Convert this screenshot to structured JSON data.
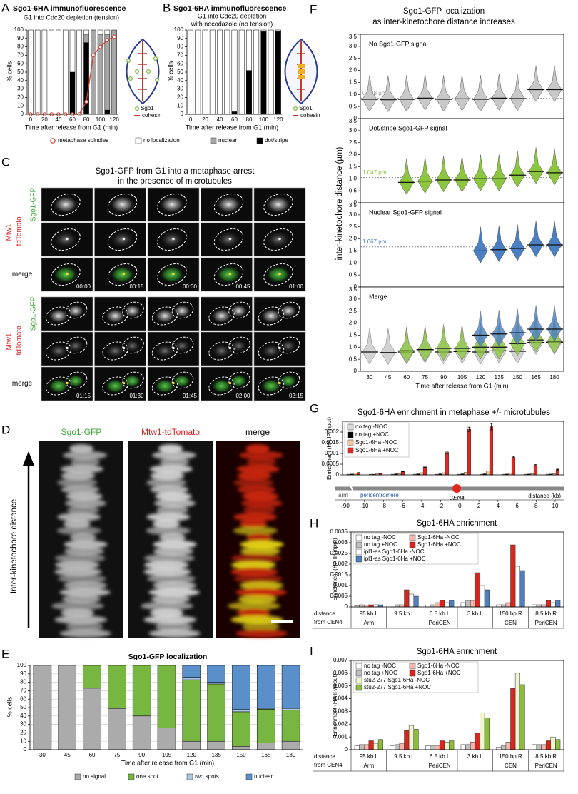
{
  "panels": [
    "A",
    "B",
    "C",
    "D",
    "E",
    "F",
    "G",
    "H",
    "I"
  ],
  "schematic": {
    "sgo1": "Sgo1",
    "cohesin": "cohesin"
  },
  "panel_c": {
    "title": [
      "Sgo1-GFP from G1 into a metaphase arrest",
      "in the presence of microtubules"
    ],
    "gfp": "Sgo1-GFP",
    "mtw1": "Mtw1",
    "tdtomato": "-tdTomato",
    "merge": "merge",
    "timestamps": [
      "00:00",
      "00:15",
      "00:30",
      "00:45",
      "01:00",
      "01:15",
      "01:30",
      "01:45",
      "02:00",
      "02:15"
    ]
  },
  "panel_d": {
    "labels": [
      "Sgo1-GFP",
      "Mtw1-tdTomato",
      "merge"
    ],
    "axis_label": "Inter-kinetochore distance"
  },
  "chart_data": [
    {
      "type": "bar",
      "stacked": true,
      "title": "Sgo1-6HA immunofluorescence",
      "subtitle": [
        "G1 into Cdc20 depletion (tension)"
      ],
      "x_label": "Time after release from G1 (min)",
      "y_label": "% cells",
      "categories": [
        0,
        null,
        20,
        null,
        40,
        null,
        60,
        null,
        80,
        null,
        100,
        null,
        120
      ],
      "ylim": [
        0,
        100
      ],
      "yticks": [
        0,
        10,
        20,
        30,
        40,
        50,
        60,
        70,
        80,
        90,
        100
      ],
      "series": [
        {
          "name": "dot/stripe",
          "color": "#000000",
          "values": [
            0,
            0,
            0,
            0,
            0,
            0,
            50,
            0,
            85,
            0,
            0,
            5,
            0
          ]
        },
        {
          "name": "nuclear",
          "color": "#a6a6a6",
          "values": [
            0,
            0,
            0,
            0,
            0,
            0,
            0,
            0,
            10,
            100,
            95,
            90,
            100
          ]
        },
        {
          "name": "no localization",
          "color": "#ffffff",
          "values": [
            100,
            100,
            100,
            100,
            100,
            100,
            50,
            100,
            5,
            0,
            5,
            5,
            0
          ]
        },
        {
          "name": "metaphase spindles",
          "type": "line",
          "color": "#d23a2a",
          "values": [
            0,
            0,
            0,
            0,
            0,
            0,
            0,
            0,
            15,
            70,
            80,
            88,
            92
          ]
        }
      ]
    },
    {
      "type": "bar",
      "stacked": true,
      "title": "Sgo1-6HA immunofluorescence",
      "subtitle": [
        "G1 into Cdc20 depletion",
        "with nocodazole (no tension)"
      ],
      "x_label": "Time after release from G1 (min)",
      "y_label": "% cells",
      "categories": [
        0,
        null,
        20,
        null,
        40,
        null,
        60,
        null,
        80,
        null,
        100,
        null,
        120
      ],
      "ylim": [
        0,
        100
      ],
      "yticks": [
        0,
        10,
        20,
        30,
        40,
        50,
        60,
        70,
        80,
        90,
        100
      ],
      "series": [
        {
          "color": "#000000",
          "values": [
            0,
            0,
            0,
            0,
            0,
            0,
            3,
            0,
            52,
            0,
            98,
            0,
            98
          ]
        },
        {
          "color": "#ffffff",
          "values": [
            100,
            100,
            100,
            100,
            100,
            100,
            97,
            100,
            48,
            100,
            2,
            100,
            2
          ]
        }
      ]
    },
    {
      "type": "bar",
      "stacked": true,
      "grid": true,
      "title": "Sgo1-GFP localization",
      "x_label": "Time after release from G1 (min)",
      "y_label": "% cells",
      "categories": [
        30,
        45,
        60,
        75,
        90,
        105,
        120,
        135,
        150,
        165,
        180
      ],
      "ylim": [
        0,
        100
      ],
      "yticks": [
        0,
        10,
        20,
        30,
        40,
        50,
        60,
        70,
        80,
        90,
        100
      ],
      "series": [
        {
          "name": "no signal",
          "color": "#ababab",
          "values": [
            100,
            100,
            73,
            49,
            40,
            26,
            10,
            10,
            4,
            8,
            10
          ]
        },
        {
          "name": "one spot",
          "color": "#78b642",
          "values": [
            0,
            0,
            27,
            51,
            60,
            74,
            73,
            68,
            41,
            40,
            37
          ]
        },
        {
          "name": "two spots",
          "color": "#a9cbe8",
          "values": [
            0,
            0,
            0,
            0,
            0,
            0,
            3,
            2,
            3,
            1,
            2
          ]
        },
        {
          "name": "nuclear",
          "color": "#5b8fca",
          "values": [
            0,
            0,
            0,
            0,
            0,
            0,
            14,
            20,
            52,
            51,
            51
          ]
        }
      ]
    },
    {
      "type": "violin",
      "title": "Sgo1-GFP localization",
      "subtitle": [
        "as inter-kinetochore distance increases"
      ],
      "x_label": "Time after release from G1 (min)",
      "y_label": "inter-kinetochore distance (µm)",
      "categories": [
        30,
        45,
        60,
        75,
        90,
        105,
        120,
        135,
        150,
        165,
        180
      ],
      "ylim": [
        0,
        3.5
      ],
      "yticks": [
        0,
        0.5,
        {
          "value": 1,
          "label": "1.0"
        },
        1.5,
        {
          "value": 2,
          "label": "2.0"
        },
        2.5,
        {
          "value": 3,
          "label": "3.0"
        },
        3.5
      ],
      "panels": [
        {
          "label": "No Sgo1-GFP signal",
          "color": "#c8c8c8",
          "reference": 0.838,
          "reference_label": "0.838 µm",
          "values": [
            0.8,
            0.78,
            0.8,
            0.85,
            0.8,
            0.82,
            0.8,
            0.85,
            0.83,
            1.2,
            1.2
          ]
        },
        {
          "label": "Dot/stripe Sgo1-GFP signal",
          "color": "#8cc63f",
          "reference": 1.047,
          "reference_label": "1.047 µm",
          "values": [
            null,
            null,
            0.85,
            0.9,
            0.95,
            0.95,
            1.0,
            1.0,
            1.15,
            1.3,
            1.25
          ]
        },
        {
          "label": "Nuclear Sgo1-GFP signal",
          "color": "#4a7fc1",
          "reference": 1.667,
          "reference_label": "1.667 µm",
          "values": [
            null,
            null,
            null,
            null,
            null,
            null,
            1.5,
            1.55,
            1.6,
            1.75,
            1.75
          ]
        },
        {
          "label": "Merge"
        }
      ]
    },
    {
      "type": "bar",
      "title": "Sgo1-6HA enrichment in metaphase +/- microtubules",
      "y_label": "Enrichment (HA IP/input)",
      "categories": [
        null,
        null,
        null,
        null,
        null,
        null,
        null,
        null,
        null,
        null
      ],
      "ylim": [
        0,
        0.0025
      ],
      "yticks": [
        0,
        0.0005,
        0.001,
        0.0015,
        0.002
      ],
      "series": [
        {
          "name": "no tag -NOC",
          "color": "#d9d9d9",
          "values": [
            3e-05,
            3e-05,
            3e-05,
            3e-05,
            3e-05,
            3e-05,
            3e-05,
            3e-05,
            3e-05,
            3e-05
          ]
        },
        {
          "name": "no tag +NOC",
          "color": "#000000",
          "values": [
            4e-05,
            3e-05,
            5e-05,
            5e-05,
            5e-05,
            5e-05,
            5e-05,
            4e-05,
            4e-05,
            4e-05
          ]
        },
        {
          "name": "Sgo1-6Ha -NOC",
          "color": "#f4c79e",
          "values": [
            8e-05,
            5e-05,
            6e-05,
            0.0001,
            0.0001,
            0.00012,
            0.00018,
            8e-05,
            6e-05,
            5e-05
          ]
        },
        {
          "name": "Sgo1-6Ha +NOC",
          "color": "#e0281e",
          "values": [
            0.0001,
            7e-05,
            0.00015,
            0.00038,
            0.00105,
            0.00213,
            0.00225,
            0.00082,
            0.00045,
            0.00025
          ],
          "errors": [
            1e-05,
            1e-05,
            1e-05,
            3e-05,
            5e-05,
            0.0001,
            0.00015,
            4e-05,
            3e-05,
            2e-05
          ]
        }
      ],
      "chromosome": {
        "arm": "arm",
        "pericentromere": "pericentromere",
        "centromere": "CEN4"
      },
      "distance_label": "distance (kb)",
      "distance_ticks": [
        -90,
        -10,
        -8,
        -6,
        -4,
        -2,
        0,
        2,
        4,
        6,
        8,
        10
      ]
    },
    {
      "type": "bar",
      "title": "Sgo1-6HA enrichment",
      "y_label": "Enrichment (HA IP/input)",
      "categories": [
        "95 kb L",
        "9.5 kb L",
        "6.5 kb L",
        "3 kb L",
        "150 bp R",
        "8.5 kb R"
      ],
      "regions": [
        "Arm",
        null,
        "PeriCEN",
        null,
        "CEN",
        "PeriCEN"
      ],
      "row_label": [
        "distance",
        "from CEN4"
      ],
      "ylim": [
        0,
        0.0035
      ],
      "yticks": [
        0,
        0.0005,
        0.001,
        0.0015,
        0.002,
        0.0025,
        0.003,
        0.0035
      ],
      "series": [
        {
          "name": "no tag -NOC",
          "color": "#ffffff",
          "values": [
            5e-05,
            8e-05,
            8e-05,
            0.0002,
            0.0001,
            0.0001
          ]
        },
        {
          "name": "no tag +NOC",
          "color": "#bfbfbf",
          "values": [
            0.0001,
            0.0001,
            0.0001,
            0.0003,
            0.0001,
            0.0001
          ]
        },
        {
          "name": "Sgo1-6Ha -NOC",
          "color": "#f2b5b0",
          "values": [
            8e-05,
            0.0001,
            0.0002,
            0.0003,
            0.0002,
            0.0001
          ]
        },
        {
          "name": "Sgo1-6Ha +NOC",
          "color": "#d9261c",
          "values": [
            0.0001,
            0.0008,
            0.0003,
            0.0016,
            0.0029,
            0.0003
          ]
        },
        {
          "name": "ipl1-as Sgo1-6Ha -NOC",
          "color": "#ffffff",
          "values": [
            0.0001,
            0.0006,
            0.0002,
            0.001,
            0.0019,
            0.0002
          ]
        },
        {
          "name": "ipl1-as Sgo1-6Ha +NOC",
          "color": "#4f7fbf",
          "values": [
            0.0001,
            0.0005,
            0.0003,
            0.0008,
            0.0017,
            0.0003
          ]
        }
      ]
    },
    {
      "type": "bar",
      "title": "Sgo1-6HA enrichment",
      "y_label": "Enrichment (HA IP/input)",
      "categories": [
        "95 kb L",
        "9.5 kb L",
        "6.5 kb L",
        "3 kb L",
        "150 bp R",
        "8.5 kb R"
      ],
      "regions": [
        "Arm",
        null,
        "PeriCEN",
        null,
        "CEN",
        "PeriCEN"
      ],
      "row_label": [
        "distance",
        "from CEN4"
      ],
      "ylim": [
        0,
        0.007
      ],
      "yticks": [
        0,
        0.001,
        0.002,
        0.003,
        0.004,
        0.005,
        0.006,
        0.007
      ],
      "series": [
        {
          "name": "no tag -NOC",
          "color": "#ffffff",
          "values": [
            0.0003,
            0.0003,
            0.0003,
            0.0004,
            0.0002,
            0.0004
          ]
        },
        {
          "name": "no tag +NOC",
          "color": "#bfbfbf",
          "values": [
            0.0004,
            0.0004,
            0.0003,
            0.0004,
            0.0003,
            0.0004
          ]
        },
        {
          "name": "Sgo1-6Ha -NOC",
          "color": "#f2b5b0",
          "values": [
            0.0004,
            0.0005,
            0.0003,
            0.0006,
            0.0006,
            0.0004
          ]
        },
        {
          "name": "Sgo1-6Ha +NOC",
          "color": "#d9261c",
          "values": [
            0.0007,
            0.0015,
            0.0007,
            0.0013,
            0.0048,
            0.0007
          ]
        },
        {
          "name": "stu2-277 Sgo1-6Ha -NOC",
          "color": "#f0f5d0",
          "values": [
            0.0005,
            0.0019,
            0.0006,
            0.0029,
            0.006,
            0.001
          ]
        },
        {
          "name": "stu2-277 Sgo1-6Ha +NOC",
          "color": "#8cbd3a",
          "values": [
            0.0008,
            0.0016,
            0.0007,
            0.0025,
            0.0051,
            0.0008
          ]
        }
      ]
    }
  ]
}
